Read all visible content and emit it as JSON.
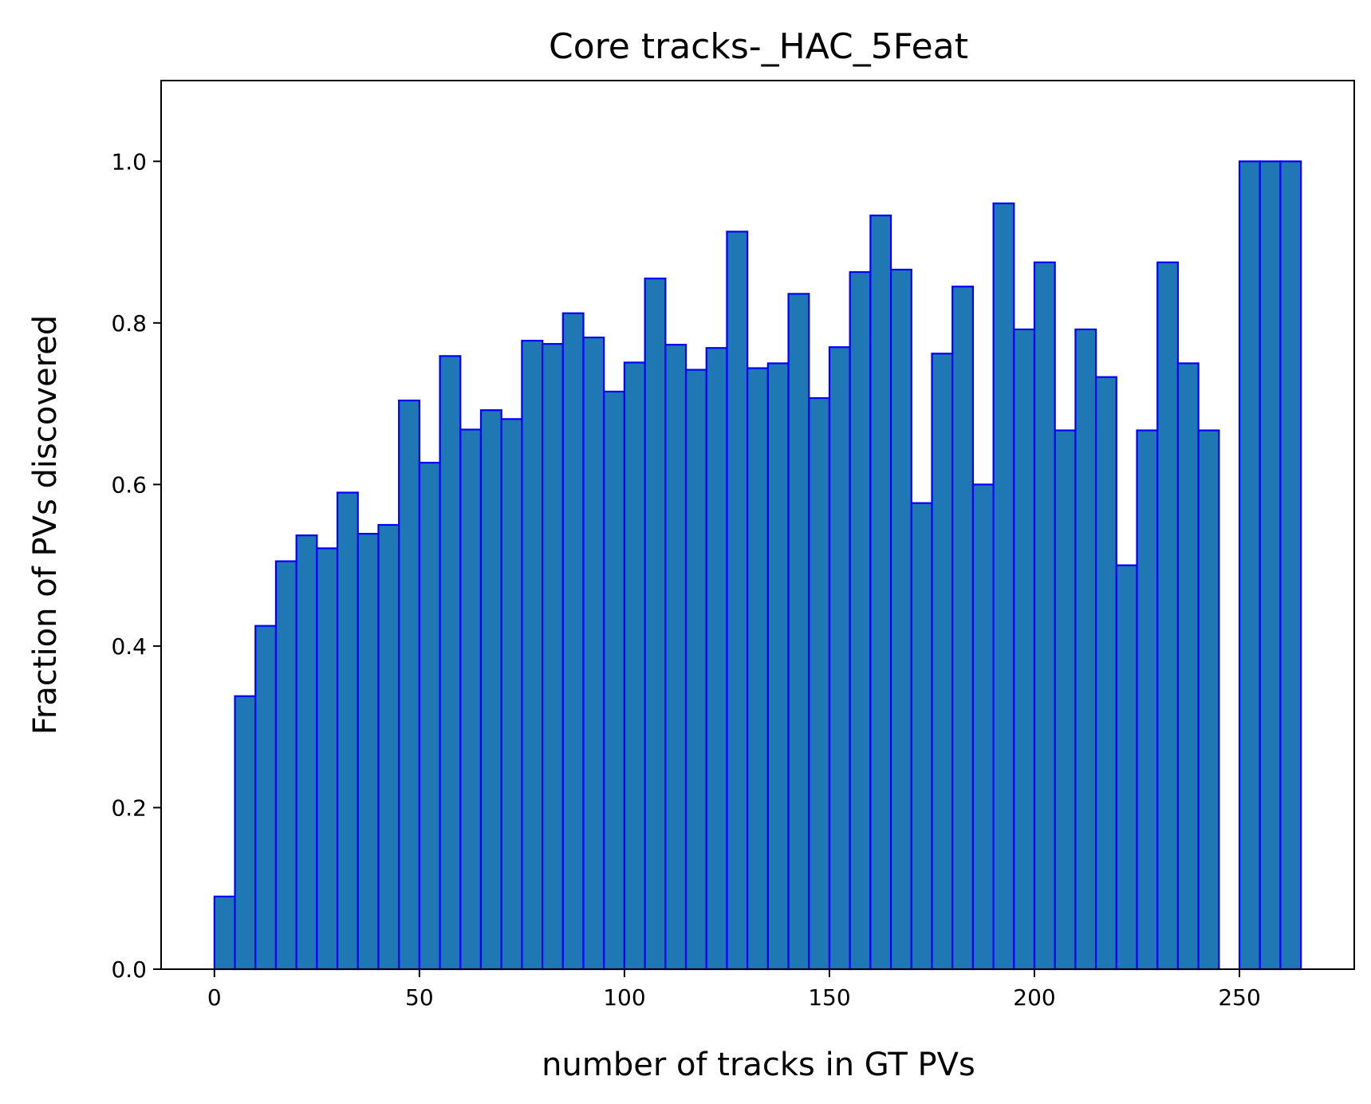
{
  "chart_data": {
    "type": "bar",
    "title": "Core tracks-_HAC_5Feat",
    "xlabel": "number of tracks in GT PVs",
    "ylabel": "Fraction of PVs discovered",
    "xlim": [
      -13,
      278
    ],
    "ylim": [
      0,
      1.1
    ],
    "x_ticks": [
      0,
      50,
      100,
      150,
      200,
      250
    ],
    "x_tick_labels": [
      "0",
      "50",
      "100",
      "150",
      "200",
      "250"
    ],
    "y_ticks": [
      0.0,
      0.2,
      0.4,
      0.6,
      0.8,
      1.0
    ],
    "y_tick_labels": [
      "0.0",
      "0.2",
      "0.4",
      "0.6",
      "0.8",
      "1.0"
    ],
    "grid": false,
    "colors": {
      "fill": "#1f77b4",
      "edge": "#0000ff"
    },
    "bins": {
      "start": 0,
      "width": 5,
      "values": [
        0.09,
        0.338,
        0.425,
        0.505,
        0.537,
        0.521,
        0.59,
        0.539,
        0.55,
        0.704,
        0.627,
        0.759,
        0.668,
        0.692,
        0.681,
        0.778,
        0.774,
        0.812,
        0.782,
        0.715,
        0.751,
        0.855,
        0.773,
        0.742,
        0.769,
        0.913,
        0.744,
        0.75,
        0.836,
        0.707,
        0.77,
        0.863,
        0.933,
        0.866,
        0.577,
        0.762,
        0.845,
        0.6,
        0.948,
        0.792,
        0.875,
        0.667,
        0.792,
        0.733,
        0.5,
        0.667,
        0.875,
        0.75,
        0.667,
        null,
        1.0,
        1.0,
        1.0
      ]
    }
  }
}
